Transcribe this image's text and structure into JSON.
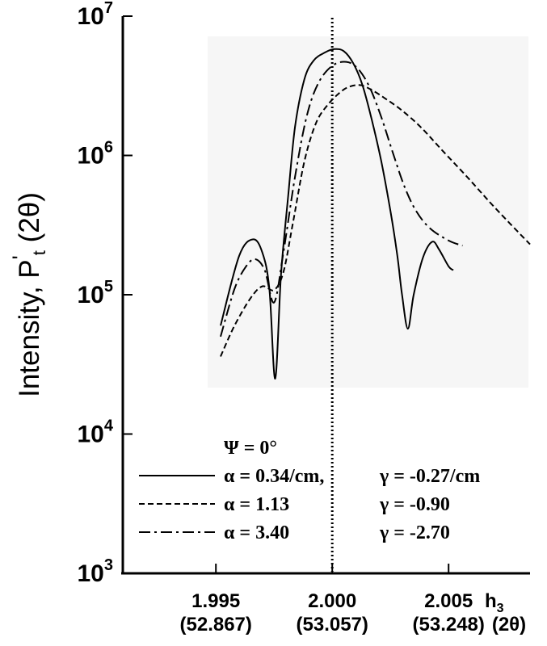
{
  "chart_data": {
    "type": "line",
    "ylabel": "Intensity, P",
    "ylabel_prime": "'",
    "ylabel_sub": "t",
    "ylabel_suffix": " (2θ)",
    "y_scale": "log",
    "ylim": [
      1000,
      10000000
    ],
    "xlim": [
      1.991,
      2.0085
    ],
    "y_ticks": [
      {
        "base": "10",
        "exp": "3",
        "value": 1000
      },
      {
        "base": "10",
        "exp": "4",
        "value": 10000
      },
      {
        "base": "10",
        "exp": "5",
        "value": 100000
      },
      {
        "base": "10",
        "exp": "6",
        "value": 1000000
      },
      {
        "base": "10",
        "exp": "7",
        "value": 10000000
      }
    ],
    "x_ticks": [
      {
        "value": 1.995,
        "label": "1.995",
        "sub": "(52.867)"
      },
      {
        "value": 2.0,
        "label": "2.000",
        "sub": "(53.057)"
      },
      {
        "value": 2.005,
        "label": "2.005",
        "sub": "(53.248)"
      }
    ],
    "x_axis_label": "h",
    "x_axis_label_sub": "3",
    "x_axis_label_2": "(2θ)",
    "reference_line_x": 2.0,
    "legend": {
      "header": "Ψ = 0°",
      "rows": [
        {
          "style": "solid",
          "alpha": "α =  0.34/cm,",
          "gamma": "γ = -0.27/cm"
        },
        {
          "style": "dashed",
          "alpha": "α =  1.13",
          "gamma": "γ = -0.90"
        },
        {
          "style": "dashdot",
          "alpha": "α =  3.40",
          "gamma": "γ = -2.70"
        }
      ]
    },
    "series": [
      {
        "style": "solid",
        "x": [
          1.9952,
          1.996,
          1.9966,
          1.997,
          1.9973,
          1.99755,
          1.9978,
          1.9981,
          1.9984,
          1.9988,
          1.9992,
          1.9997,
          2.0001,
          2.0005,
          2.0009,
          2.0013,
          2.0017,
          2.0021,
          2.0025,
          2.0028,
          2.003,
          2.00325,
          2.0035,
          2.0039,
          2.0043,
          2.0046,
          2.005,
          2.0052
        ],
        "y": [
          60000,
          190000,
          250000,
          200000,
          110000,
          25000,
          140000,
          500000,
          1600000,
          3500000,
          4800000,
          5500000,
          5800000,
          5600000,
          4600000,
          3200000,
          1800000,
          920000,
          400000,
          190000,
          100000,
          57000,
          100000,
          185000,
          240000,
          210000,
          160000,
          150000
        ]
      },
      {
        "style": "dashed",
        "x": [
          1.9952,
          1.9958,
          1.9965,
          1.997,
          1.9975,
          1.9979,
          1.9983,
          1.9988,
          1.9993,
          1.9998,
          2.0003,
          2.0007,
          2.0012,
          2.0017,
          2.0023,
          2.003,
          2.0038,
          2.0047,
          2.0058,
          2.007,
          2.0085
        ],
        "y": [
          36000,
          60000,
          95000,
          115000,
          108000,
          145000,
          320000,
          900000,
          1700000,
          2300000,
          2800000,
          3100000,
          3200000,
          2950000,
          2550000,
          2100000,
          1600000,
          1100000,
          700000,
          420000,
          230000
        ]
      },
      {
        "style": "dashdot",
        "x": [
          1.9952,
          1.9958,
          1.9963,
          1.9967,
          1.9971,
          1.9975,
          1.9979,
          1.9984,
          1.9989,
          1.9994,
          2.0,
          2.0006,
          2.0011,
          2.0016,
          2.0021,
          2.0026,
          2.0031,
          2.0036,
          2.0042,
          2.005,
          2.0056
        ],
        "y": [
          50000,
          110000,
          160000,
          180000,
          150000,
          88000,
          200000,
          700000,
          1900000,
          3300000,
          4400000,
          4700000,
          4200000,
          3100000,
          1900000,
          1050000,
          600000,
          400000,
          300000,
          245000,
          225000
        ]
      }
    ]
  }
}
